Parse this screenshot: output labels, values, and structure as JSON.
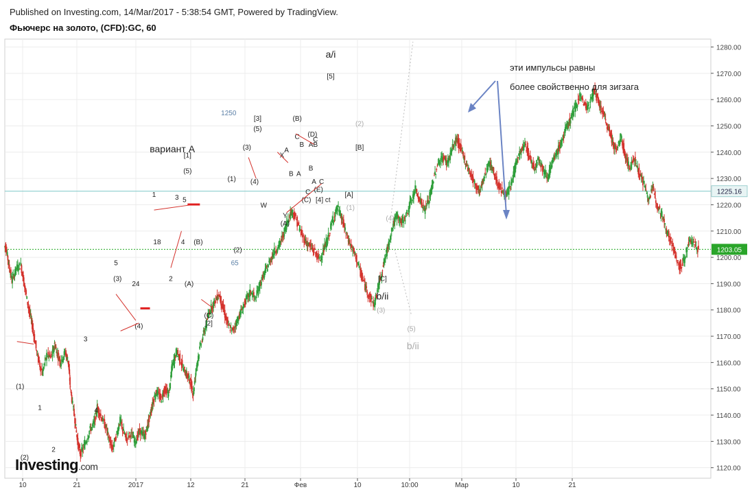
{
  "header": {
    "published": "Published on Investing.com, 14/Mar/2017 - 5:38:54 GMT, Powered by TradingView.",
    "title": "Фьючерс на золото, (CFD):GC, 60"
  },
  "logo": {
    "brand": "Investing",
    "domain": ".com"
  },
  "colors": {
    "up": "#2e9e3a",
    "down": "#d4322c",
    "axis": "#555555",
    "grid": "#ececec",
    "priceTag": "#2e8b57",
    "refTag": "#5aa9a9",
    "arrow": "#6b84c4"
  },
  "chart_data": {
    "type": "candlestick",
    "ylim": [
      1116,
      1283
    ],
    "y_ticks": [
      1120,
      1130,
      1140,
      1150,
      1160,
      1170,
      1180,
      1190,
      1200,
      1210,
      1220,
      1230,
      1240,
      1250,
      1260,
      1270,
      1280
    ],
    "x_ticks": [
      "10",
      "21",
      "2017",
      "12",
      "21",
      "Фев",
      "10",
      "10:00",
      "Мар",
      "10",
      "21"
    ],
    "last_price": "1203.05",
    "ref_price": "1225.16",
    "price_path": [
      [
        0,
        1204
      ],
      [
        0.1,
        1204
      ],
      [
        0.3,
        1197
      ],
      [
        0.5,
        1191
      ],
      [
        0.8,
        1196
      ],
      [
        1.1,
        1197
      ],
      [
        1.4,
        1187
      ],
      [
        1.7,
        1178
      ],
      [
        1.9,
        1172
      ],
      [
        2.2,
        1162
      ],
      [
        2.5,
        1156
      ],
      [
        2.8,
        1163
      ],
      [
        3.1,
        1162
      ],
      [
        3.3,
        1167
      ],
      [
        3.5,
        1163
      ],
      [
        3.7,
        1160
      ],
      [
        4.0,
        1164
      ],
      [
        4.2,
        1160
      ],
      [
        4.3,
        1152
      ],
      [
        4.6,
        1140
      ],
      [
        4.8,
        1130
      ],
      [
        5.0,
        1125
      ],
      [
        5.3,
        1129
      ],
      [
        5.6,
        1134
      ],
      [
        5.9,
        1137
      ],
      [
        6.1,
        1143
      ],
      [
        6.4,
        1139
      ],
      [
        6.7,
        1135
      ],
      [
        6.9,
        1130
      ],
      [
        7.1,
        1127
      ],
      [
        7.4,
        1133
      ],
      [
        7.6,
        1138
      ],
      [
        7.8,
        1134
      ],
      [
        8.0,
        1131
      ],
      [
        8.3,
        1133
      ],
      [
        8.6,
        1130
      ],
      [
        8.9,
        1134
      ],
      [
        9.2,
        1132
      ],
      [
        9.4,
        1136
      ],
      [
        9.6,
        1141
      ],
      [
        9.8,
        1146
      ],
      [
        10.0,
        1149
      ],
      [
        10.3,
        1146
      ],
      [
        10.5,
        1150
      ],
      [
        10.8,
        1148
      ],
      [
        11.0,
        1158
      ],
      [
        11.3,
        1164
      ],
      [
        11.5,
        1162
      ],
      [
        11.8,
        1157
      ],
      [
        12.0,
        1155
      ],
      [
        12.2,
        1153
      ],
      [
        12.4,
        1148
      ],
      [
        12.6,
        1158
      ],
      [
        12.9,
        1167
      ],
      [
        13.2,
        1173
      ],
      [
        13.5,
        1180
      ],
      [
        13.8,
        1183
      ],
      [
        14.1,
        1186
      ],
      [
        14.4,
        1180
      ],
      [
        14.7,
        1174
      ],
      [
        15.0,
        1172
      ],
      [
        15.3,
        1176
      ],
      [
        15.6,
        1180
      ],
      [
        15.9,
        1184
      ],
      [
        16.2,
        1187
      ],
      [
        16.5,
        1184
      ],
      [
        16.8,
        1190
      ],
      [
        17.1,
        1194
      ],
      [
        17.4,
        1198
      ],
      [
        17.7,
        1202
      ],
      [
        18.0,
        1204
      ],
      [
        18.3,
        1208
      ],
      [
        18.6,
        1214
      ],
      [
        18.9,
        1218
      ],
      [
        19.2,
        1214
      ],
      [
        19.5,
        1209
      ],
      [
        19.8,
        1206
      ],
      [
        20.1,
        1204
      ],
      [
        20.4,
        1202
      ],
      [
        20.7,
        1199
      ],
      [
        21.0,
        1203
      ],
      [
        21.3,
        1208
      ],
      [
        21.6,
        1215
      ],
      [
        21.9,
        1219
      ],
      [
        22.2,
        1214
      ],
      [
        22.5,
        1208
      ],
      [
        22.8,
        1204
      ],
      [
        23.1,
        1200
      ],
      [
        23.4,
        1194
      ],
      [
        23.7,
        1189
      ],
      [
        24.0,
        1185
      ],
      [
        24.3,
        1182
      ],
      [
        24.6,
        1190
      ],
      [
        24.9,
        1197
      ],
      [
        25.2,
        1204
      ],
      [
        25.5,
        1212
      ],
      [
        25.8,
        1216
      ],
      [
        26.1,
        1213
      ],
      [
        26.4,
        1216
      ],
      [
        26.7,
        1221
      ],
      [
        27.0,
        1226
      ],
      [
        27.3,
        1222
      ],
      [
        27.6,
        1218
      ],
      [
        27.9,
        1222
      ],
      [
        28.2,
        1230
      ],
      [
        28.5,
        1236
      ],
      [
        28.8,
        1238
      ],
      [
        29.1,
        1236
      ],
      [
        29.4,
        1241
      ],
      [
        29.7,
        1245
      ],
      [
        30.0,
        1241
      ],
      [
        30.3,
        1236
      ],
      [
        30.6,
        1232
      ],
      [
        30.9,
        1228
      ],
      [
        31.2,
        1225
      ],
      [
        31.5,
        1230
      ],
      [
        31.8,
        1236
      ],
      [
        32.1,
        1233
      ],
      [
        32.4,
        1228
      ],
      [
        32.7,
        1225
      ],
      [
        33.0,
        1223
      ],
      [
        33.3,
        1228
      ],
      [
        33.6,
        1236
      ],
      [
        33.9,
        1240
      ],
      [
        34.2,
        1243
      ],
      [
        34.5,
        1238
      ],
      [
        34.8,
        1234
      ],
      [
        35.1,
        1238
      ],
      [
        35.4,
        1233
      ],
      [
        35.7,
        1231
      ],
      [
        36.0,
        1236
      ],
      [
        36.3,
        1240
      ],
      [
        36.6,
        1244
      ],
      [
        36.9,
        1249
      ],
      [
        37.2,
        1253
      ],
      [
        37.5,
        1257
      ],
      [
        37.8,
        1262
      ],
      [
        38.1,
        1258
      ],
      [
        38.4,
        1257
      ],
      [
        38.7,
        1264
      ],
      [
        39.0,
        1259
      ],
      [
        39.3,
        1255
      ],
      [
        39.6,
        1250
      ],
      [
        39.9,
        1245
      ],
      [
        40.2,
        1240
      ],
      [
        40.5,
        1246
      ],
      [
        40.8,
        1238
      ],
      [
        41.1,
        1234
      ],
      [
        41.4,
        1238
      ],
      [
        41.7,
        1232
      ],
      [
        42.0,
        1228
      ],
      [
        42.3,
        1222
      ],
      [
        42.6,
        1226
      ],
      [
        42.9,
        1220
      ],
      [
        43.2,
        1216
      ],
      [
        43.5,
        1210
      ],
      [
        43.8,
        1206
      ],
      [
        44.1,
        1200
      ],
      [
        44.4,
        1196
      ],
      [
        44.7,
        1200
      ],
      [
        45.0,
        1207
      ],
      [
        45.3,
        1205
      ],
      [
        45.6,
        1203
      ]
    ],
    "wave_labels_black": [
      {
        "t": "(1)",
        "x": 1.0,
        "y": 1150
      },
      {
        "t": "1",
        "x": 2.3,
        "y": 1142
      },
      {
        "t": "(2)",
        "x": 1.3,
        "y": 1123
      },
      {
        "t": "2",
        "x": 3.2,
        "y": 1126
      },
      {
        "t": "3",
        "x": 5.3,
        "y": 1168
      },
      {
        "t": "4",
        "x": 6.0,
        "y": 1141
      },
      {
        "t": "5",
        "x": 7.3,
        "y": 1197
      },
      {
        "t": "(3)",
        "x": 7.4,
        "y": 1191
      },
      {
        "t": "24",
        "x": 8.6,
        "y": 1189
      },
      {
        "t": "(4)",
        "x": 8.8,
        "y": 1173
      },
      {
        "t": "18",
        "x": 10.0,
        "y": 1205
      },
      {
        "t": "1",
        "x": 9.8,
        "y": 1223
      },
      {
        "t": "3",
        "x": 11.3,
        "y": 1222
      },
      {
        "t": "5",
        "x": 11.8,
        "y": 1221
      },
      {
        "t": "2",
        "x": 10.9,
        "y": 1191
      },
      {
        "t": "4",
        "x": 11.7,
        "y": 1205
      },
      {
        "t": "(B)",
        "x": 12.7,
        "y": 1205
      },
      {
        "t": "(A)",
        "x": 12.1,
        "y": 1189
      },
      {
        "t": "(C)",
        "x": 13.4,
        "y": 1177
      },
      {
        "t": "[2]",
        "x": 13.4,
        "y": 1174
      },
      {
        "t": "вариант А",
        "x": 11.0,
        "y": 1240
      },
      {
        "t": "[1]",
        "x": 12.0,
        "y": 1238
      },
      {
        "t": "(5)",
        "x": 12.0,
        "y": 1232
      },
      {
        "t": "(1)",
        "x": 14.9,
        "y": 1229
      },
      {
        "t": "(2)",
        "x": 15.3,
        "y": 1202
      },
      {
        "t": "(3)",
        "x": 15.9,
        "y": 1241
      },
      {
        "t": "(4)",
        "x": 16.4,
        "y": 1228
      },
      {
        "t": "[3]",
        "x": 16.6,
        "y": 1252
      },
      {
        "t": "(5)",
        "x": 16.6,
        "y": 1248
      },
      {
        "t": "W",
        "x": 17.0,
        "y": 1219
      },
      {
        "t": "X",
        "x": 18.2,
        "y": 1238
      },
      {
        "t": "Y",
        "x": 18.4,
        "y": 1215
      },
      {
        "t": "(A)",
        "x": 18.4,
        "y": 1212
      },
      {
        "t": "(B)",
        "x": 19.2,
        "y": 1252
      },
      {
        "t": "C",
        "x": 19.2,
        "y": 1245
      },
      {
        "t": "A",
        "x": 18.5,
        "y": 1240
      },
      {
        "t": "B",
        "x": 18.8,
        "y": 1231
      },
      {
        "t": "A",
        "x": 19.3,
        "y": 1231
      },
      {
        "t": "B",
        "x": 19.5,
        "y": 1242
      },
      {
        "t": "A",
        "x": 20.1,
        "y": 1242
      },
      {
        "t": "B",
        "x": 20.4,
        "y": 1242
      },
      {
        "t": "(D)",
        "x": 20.2,
        "y": 1246
      },
      {
        "t": "C",
        "x": 20.4,
        "y": 1244
      },
      {
        "t": "B",
        "x": 20.1,
        "y": 1233
      },
      {
        "t": "A",
        "x": 20.3,
        "y": 1228
      },
      {
        "t": "C",
        "x": 19.9,
        "y": 1224
      },
      {
        "t": "(C)",
        "x": 19.8,
        "y": 1221
      },
      {
        "t": "C",
        "x": 20.8,
        "y": 1228
      },
      {
        "t": "(E)",
        "x": 20.6,
        "y": 1225
      },
      {
        "t": "[4] ct",
        "x": 20.9,
        "y": 1221
      },
      {
        "t": "a/i",
        "x": 21.4,
        "y": 1276
      },
      {
        "t": "[5]",
        "x": 21.4,
        "y": 1268
      },
      {
        "t": "[B]",
        "x": 23.3,
        "y": 1241
      },
      {
        "t": "[A]",
        "x": 22.6,
        "y": 1223
      },
      {
        "t": "[C]",
        "x": 24.8,
        "y": 1191
      },
      {
        "t": "b/ii",
        "x": 24.8,
        "y": 1184
      },
      {
        "t": "1250",
        "x": 14.7,
        "y": 1254
      },
      {
        "t": "65",
        "x": 15.1,
        "y": 1197
      }
    ],
    "wave_labels_gray": [
      {
        "t": "(2)",
        "x": 23.3,
        "y": 1250
      },
      {
        "t": "(1)",
        "x": 22.7,
        "y": 1218
      },
      {
        "t": "(4)",
        "x": 25.3,
        "y": 1214
      },
      {
        "t": "(3)",
        "x": 24.7,
        "y": 1179
      },
      {
        "t": "(5)",
        "x": 26.7,
        "y": 1172
      },
      {
        "t": "b/ii",
        "x": 26.8,
        "y": 1165
      }
    ],
    "annotations": [
      "эти импульсы равны",
      "более свойственно для зигзага"
    ]
  }
}
